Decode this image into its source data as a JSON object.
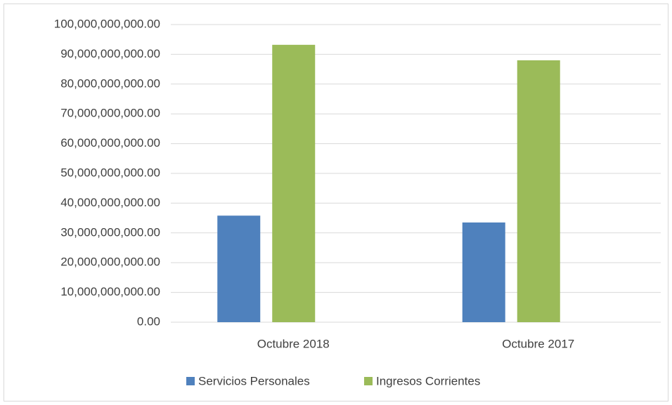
{
  "chart_data": {
    "type": "bar",
    "categories": [
      "Octubre 2018",
      "Octubre 2017"
    ],
    "series": [
      {
        "name": "Servicios Personales",
        "color": "#4f81bd",
        "values": [
          35800000000,
          33500000000
        ]
      },
      {
        "name": "Ingresos Corrientes",
        "color": "#9bbb59",
        "values": [
          93200000000,
          88000000000
        ]
      }
    ],
    "ylim": [
      0,
      100000000000
    ],
    "yticks": [
      {
        "value": 0,
        "label": "0.00"
      },
      {
        "value": 10000000000,
        "label": "10,000,000,000.00"
      },
      {
        "value": 20000000000,
        "label": "20,000,000,000.00"
      },
      {
        "value": 30000000000,
        "label": "30,000,000,000.00"
      },
      {
        "value": 40000000000,
        "label": "40,000,000,000.00"
      },
      {
        "value": 50000000000,
        "label": "50,000,000,000.00"
      },
      {
        "value": 60000000000,
        "label": "60,000,000,000.00"
      },
      {
        "value": 70000000000,
        "label": "70,000,000,000.00"
      },
      {
        "value": 80000000000,
        "label": "80,000,000,000.00"
      },
      {
        "value": 90000000000,
        "label": "90,000,000,000.00"
      },
      {
        "value": 100000000000,
        "label": "100,000,000,000.00"
      }
    ],
    "grid": true,
    "legend": "bottom"
  }
}
